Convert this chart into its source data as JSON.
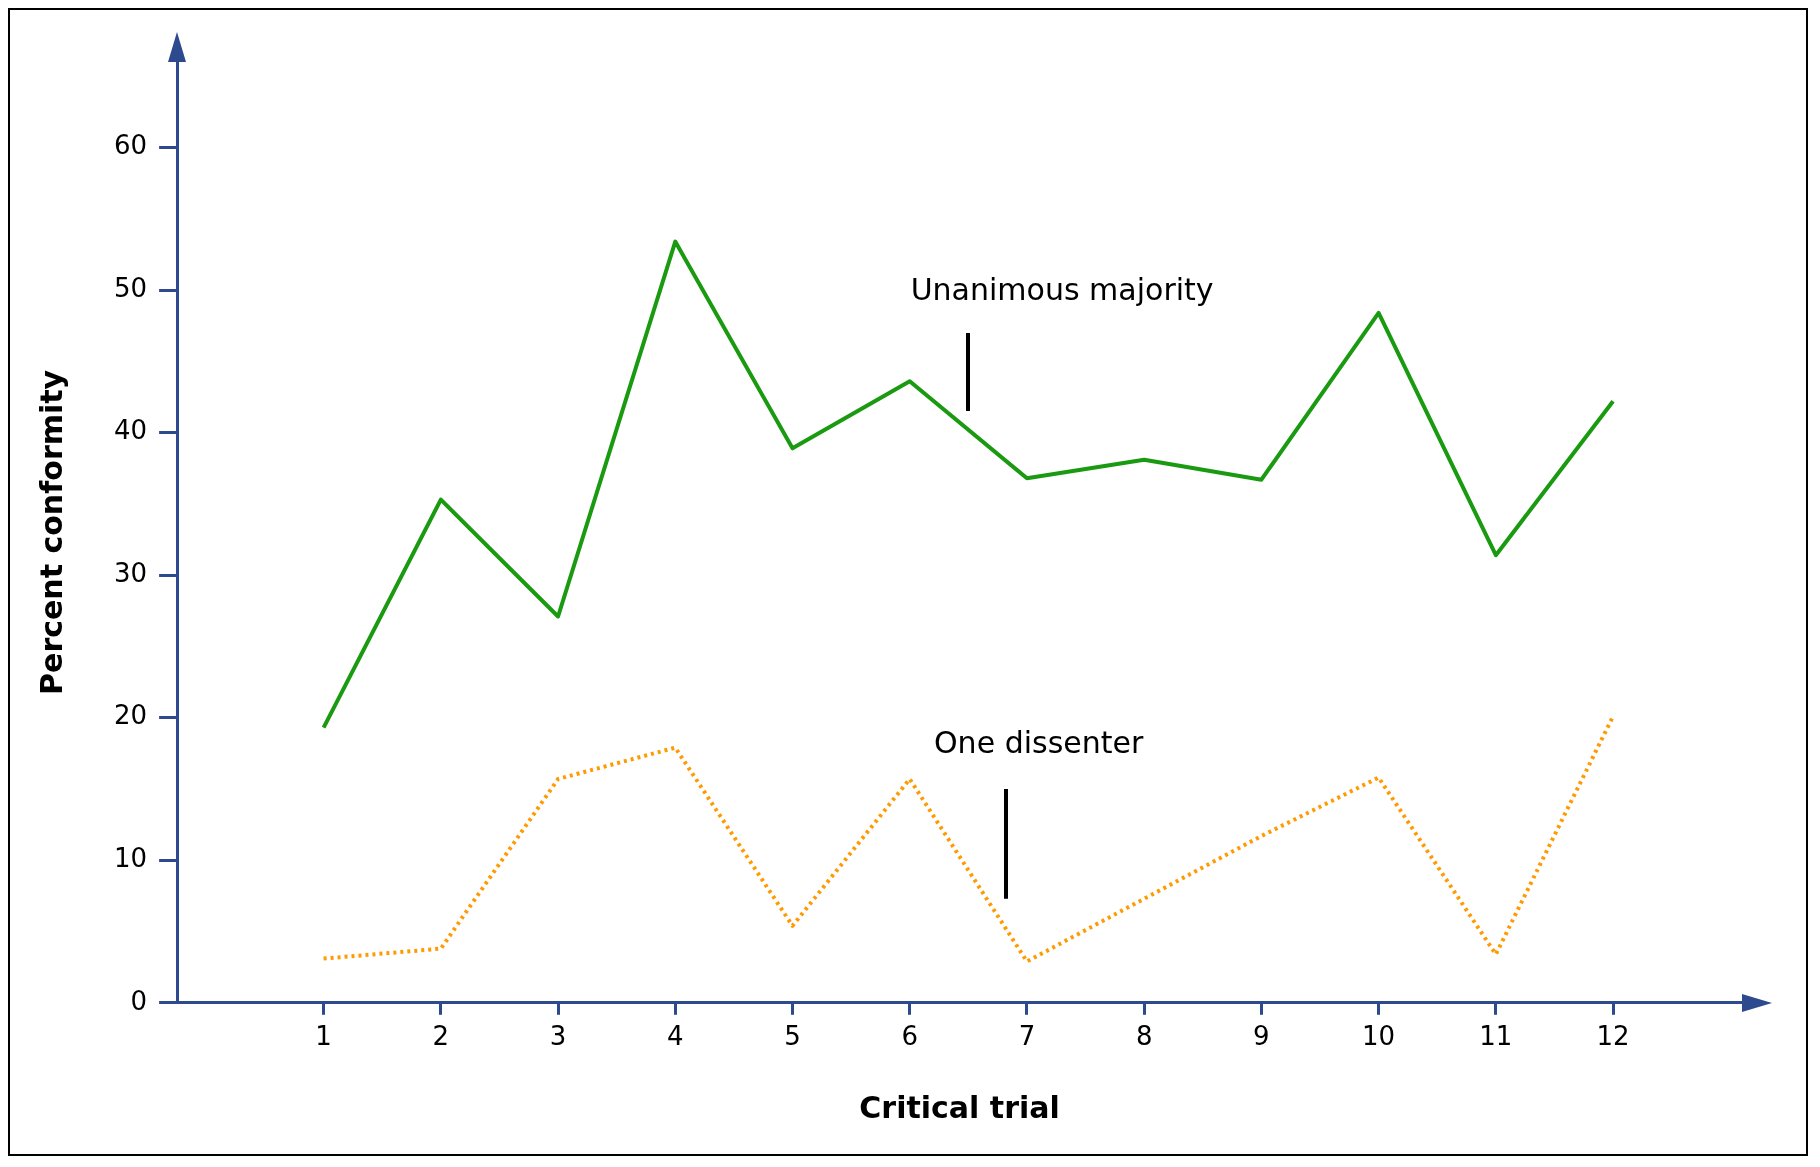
{
  "chart_data": {
    "type": "line",
    "xlabel": "Critical trial",
    "ylabel": "Percent conformity",
    "x": [
      1,
      2,
      3,
      4,
      5,
      6,
      7,
      8,
      9,
      10,
      11,
      12
    ],
    "xlim": [
      -0.25,
      13.1
    ],
    "xticks": [
      1,
      2,
      3,
      4,
      5,
      6,
      7,
      8,
      9,
      10,
      11,
      12
    ],
    "ylim": [
      0,
      66
    ],
    "yticks": [
      0,
      10,
      20,
      30,
      40,
      50,
      60
    ],
    "grid": false,
    "legend": false,
    "marker": "none",
    "series": [
      {
        "name": "Unanimous majority",
        "color": "#1a9a10",
        "line_style": "solid",
        "values": [
          19.3,
          35.3,
          27.1,
          53.4,
          38.9,
          43.6,
          36.8,
          38.1,
          36.7,
          48.4,
          31.4,
          42.2
        ]
      },
      {
        "name": "One dissenter",
        "color": "#ff9a00",
        "line_style": "dotted",
        "values": [
          3.1,
          3.8,
          15.7,
          17.9,
          5.4,
          15.7,
          2.9,
          7.3,
          11.7,
          15.8,
          3.4,
          20.1
        ]
      }
    ]
  }
}
